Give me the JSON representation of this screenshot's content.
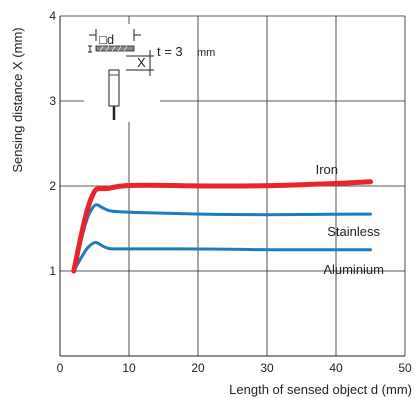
{
  "chart_data": {
    "type": "line",
    "title": "",
    "xlabel": "Length of sensed object d (mm)",
    "ylabel": "Sensing distance X (mm)",
    "xlim": [
      0,
      50
    ],
    "ylim": [
      0,
      4
    ],
    "xticks": [
      0,
      10,
      20,
      30,
      40,
      50
    ],
    "yticks": [
      1,
      2,
      3,
      4
    ],
    "grid": true,
    "inset": {
      "thickness_label": "t = 3",
      "thickness_unit": "mm",
      "d_label": "□d",
      "x_label": "X"
    },
    "series": [
      {
        "name": "Iron",
        "color": "#e8242f",
        "x": [
          2,
          3,
          4,
          5,
          5.5,
          6,
          7,
          8,
          10,
          15,
          20,
          30,
          40,
          45
        ],
        "y": [
          1.0,
          1.4,
          1.75,
          1.95,
          1.97,
          1.97,
          1.97,
          1.99,
          2.01,
          2.01,
          2.0,
          2.0,
          2.03,
          2.05
        ]
      },
      {
        "name": "Stainless",
        "color": "#1f7bc0",
        "x": [
          2,
          3,
          4,
          5,
          5.5,
          6,
          7,
          8,
          10,
          15,
          20,
          30,
          40,
          45
        ],
        "y": [
          1.0,
          1.35,
          1.65,
          1.78,
          1.78,
          1.75,
          1.71,
          1.7,
          1.69,
          1.68,
          1.67,
          1.66,
          1.67,
          1.67
        ]
      },
      {
        "name": "Aluminium",
        "color": "#1f7bc0",
        "x": [
          2,
          3,
          4,
          5,
          5.5,
          6,
          7,
          8,
          10,
          15,
          20,
          30,
          40,
          45
        ],
        "y": [
          1.0,
          1.15,
          1.28,
          1.34,
          1.33,
          1.3,
          1.26,
          1.26,
          1.26,
          1.26,
          1.26,
          1.25,
          1.25,
          1.25
        ]
      }
    ]
  }
}
